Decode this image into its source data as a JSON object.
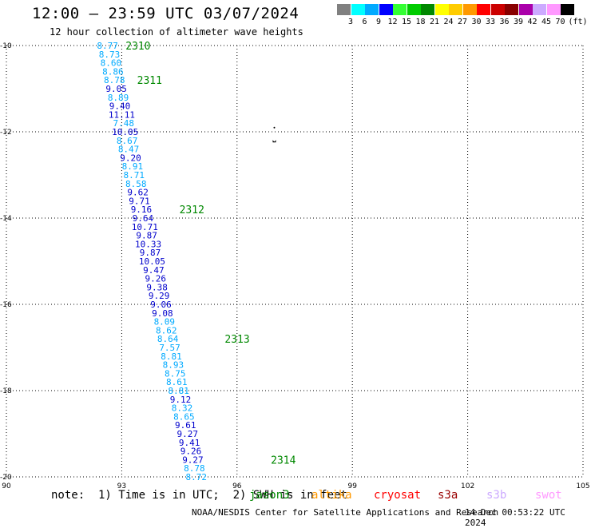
{
  "header": {
    "title": "12:00 – 23:59 UTC 03/07/2024",
    "subtitle": "12 hour collection of altimeter wave heights"
  },
  "legend": {
    "unit": "(ft)",
    "bins": [
      {
        "label": "3",
        "color": "#808080"
      },
      {
        "label": "6",
        "color": "#00ffff"
      },
      {
        "label": "9",
        "color": "#00aaff"
      },
      {
        "label": "12",
        "color": "#0000ff"
      },
      {
        "label": "15",
        "color": "#33ff33"
      },
      {
        "label": "18",
        "color": "#00cc00"
      },
      {
        "label": "21",
        "color": "#008800"
      },
      {
        "label": "24",
        "color": "#ffff00"
      },
      {
        "label": "27",
        "color": "#ffcc00"
      },
      {
        "label": "30",
        "color": "#ff9900"
      },
      {
        "label": "33",
        "color": "#ff0000"
      },
      {
        "label": "36",
        "color": "#cc0000"
      },
      {
        "label": "39",
        "color": "#880000"
      },
      {
        "label": "42",
        "color": "#aa00aa"
      },
      {
        "label": "45",
        "color": "#ccaaff"
      },
      {
        "label": "70",
        "color": "#ff99ff"
      },
      {
        "label": "",
        "color": "#000000"
      }
    ]
  },
  "map": {
    "lon_range": [
      90,
      105
    ],
    "lat_range": [
      -20,
      -10
    ],
    "lon_ticks": [
      "90",
      "93",
      "96",
      "99",
      "102",
      "105"
    ],
    "lat_ticks": [
      "-10",
      "-12",
      "-14",
      "-16",
      "-18",
      "-20"
    ],
    "grid": "dotted",
    "track_colors": {
      "light": "#00aaff",
      "dark": "#0000cc",
      "time": "#008800"
    },
    "wave_heights": [
      {
        "value": "8.77",
        "lon": 92.63,
        "lat": -10.0,
        "shade": "light"
      },
      {
        "value": "8.73",
        "lon": 92.68,
        "lat": -10.2,
        "shade": "light"
      },
      {
        "value": "8.60",
        "lon": 92.72,
        "lat": -10.4,
        "shade": "light"
      },
      {
        "value": "8.86",
        "lon": 92.77,
        "lat": -10.6,
        "shade": "light"
      },
      {
        "value": "8.78",
        "lon": 92.81,
        "lat": -10.8,
        "shade": "light"
      },
      {
        "value": "9.05",
        "lon": 92.86,
        "lat": -11.0,
        "shade": "dark"
      },
      {
        "value": "8.89",
        "lon": 92.91,
        "lat": -11.2,
        "shade": "light"
      },
      {
        "value": "9.40",
        "lon": 92.95,
        "lat": -11.4,
        "shade": "dark"
      },
      {
        "value": "11.11",
        "lon": 93.0,
        "lat": -11.6,
        "shade": "dark"
      },
      {
        "value": "7.48",
        "lon": 93.05,
        "lat": -11.8,
        "shade": "light"
      },
      {
        "value": "10.05",
        "lon": 93.09,
        "lat": -12.0,
        "shade": "dark"
      },
      {
        "value": "8.67",
        "lon": 93.14,
        "lat": -12.2,
        "shade": "light"
      },
      {
        "value": "8.47",
        "lon": 93.18,
        "lat": -12.4,
        "shade": "light"
      },
      {
        "value": "9.20",
        "lon": 93.23,
        "lat": -12.6,
        "shade": "dark"
      },
      {
        "value": "8.91",
        "lon": 93.28,
        "lat": -12.8,
        "shade": "light"
      },
      {
        "value": "8.71",
        "lon": 93.32,
        "lat": -13.0,
        "shade": "light"
      },
      {
        "value": "8.58",
        "lon": 93.37,
        "lat": -13.2,
        "shade": "light"
      },
      {
        "value": "9.62",
        "lon": 93.42,
        "lat": -13.4,
        "shade": "dark"
      },
      {
        "value": "9.71",
        "lon": 93.46,
        "lat": -13.6,
        "shade": "dark"
      },
      {
        "value": "9.16",
        "lon": 93.51,
        "lat": -13.8,
        "shade": "dark"
      },
      {
        "value": "9.64",
        "lon": 93.55,
        "lat": -14.0,
        "shade": "dark"
      },
      {
        "value": "10.71",
        "lon": 93.6,
        "lat": -14.2,
        "shade": "dark"
      },
      {
        "value": "9.87",
        "lon": 93.65,
        "lat": -14.4,
        "shade": "dark"
      },
      {
        "value": "10.33",
        "lon": 93.69,
        "lat": -14.6,
        "shade": "dark"
      },
      {
        "value": "9.87",
        "lon": 93.74,
        "lat": -14.8,
        "shade": "dark"
      },
      {
        "value": "10.05",
        "lon": 93.79,
        "lat": -15.0,
        "shade": "dark"
      },
      {
        "value": "9.47",
        "lon": 93.83,
        "lat": -15.2,
        "shade": "dark"
      },
      {
        "value": "9.26",
        "lon": 93.88,
        "lat": -15.4,
        "shade": "dark"
      },
      {
        "value": "9.38",
        "lon": 93.92,
        "lat": -15.6,
        "shade": "dark"
      },
      {
        "value": "9.29",
        "lon": 93.97,
        "lat": -15.8,
        "shade": "dark"
      },
      {
        "value": "9.06",
        "lon": 94.02,
        "lat": -16.0,
        "shade": "dark"
      },
      {
        "value": "9.08",
        "lon": 94.06,
        "lat": -16.2,
        "shade": "dark"
      },
      {
        "value": "8.09",
        "lon": 94.11,
        "lat": -16.4,
        "shade": "light"
      },
      {
        "value": "8.62",
        "lon": 94.16,
        "lat": -16.6,
        "shade": "light"
      },
      {
        "value": "8.64",
        "lon": 94.2,
        "lat": -16.8,
        "shade": "light"
      },
      {
        "value": "7.57",
        "lon": 94.25,
        "lat": -17.0,
        "shade": "light"
      },
      {
        "value": "8.81",
        "lon": 94.29,
        "lat": -17.2,
        "shade": "light"
      },
      {
        "value": "8.93",
        "lon": 94.34,
        "lat": -17.4,
        "shade": "light"
      },
      {
        "value": "8.75",
        "lon": 94.39,
        "lat": -17.6,
        "shade": "light"
      },
      {
        "value": "8.61",
        "lon": 94.43,
        "lat": -17.8,
        "shade": "light"
      },
      {
        "value": "8.81",
        "lon": 94.48,
        "lat": -18.0,
        "shade": "light"
      },
      {
        "value": "9.12",
        "lon": 94.53,
        "lat": -18.2,
        "shade": "dark"
      },
      {
        "value": "8.32",
        "lon": 94.57,
        "lat": -18.4,
        "shade": "light"
      },
      {
        "value": "8.65",
        "lon": 94.62,
        "lat": -18.6,
        "shade": "light"
      },
      {
        "value": "9.61",
        "lon": 94.66,
        "lat": -18.8,
        "shade": "dark"
      },
      {
        "value": "9.27",
        "lon": 94.71,
        "lat": -19.0,
        "shade": "dark"
      },
      {
        "value": "9.41",
        "lon": 94.76,
        "lat": -19.2,
        "shade": "dark"
      },
      {
        "value": "9.26",
        "lon": 94.8,
        "lat": -19.4,
        "shade": "dark"
      },
      {
        "value": "9.27",
        "lon": 94.85,
        "lat": -19.6,
        "shade": "dark"
      },
      {
        "value": "8.78",
        "lon": 94.89,
        "lat": -19.8,
        "shade": "light"
      },
      {
        "value": "8.72",
        "lon": 94.94,
        "lat": -20.0,
        "shade": "light"
      }
    ],
    "time_labels": [
      {
        "text": "2310",
        "lon": 93.1,
        "lat": -10.0
      },
      {
        "text": "2311",
        "lon": 93.4,
        "lat": -10.8
      },
      {
        "text": "2312",
        "lon": 94.5,
        "lat": -13.8
      },
      {
        "text": "2313",
        "lon": 95.68,
        "lat": -16.8
      },
      {
        "text": "2314",
        "lon": 96.88,
        "lat": -19.6
      }
    ],
    "outlier_mark": {
      "lon": 96.97,
      "lat": -12.2
    }
  },
  "footer": {
    "note": "note:  1) Time is in UTC;  2) SWH is in feet",
    "satellites": [
      {
        "name": "jason3",
        "color": "#008800",
        "offset": 248
      },
      {
        "name": "altika",
        "color": "#ff9900",
        "offset": 326
      },
      {
        "name": "cryosat",
        "color": "#ff0000",
        "offset": 404
      },
      {
        "name": "s3a",
        "color": "#990000",
        "offset": 484
      },
      {
        "name": "s3b",
        "color": "#ccaaff",
        "offset": 545
      },
      {
        "name": "swot",
        "color": "#ff99ff",
        "offset": 606
      }
    ],
    "credit": "NOAA/NESDIS Center for Satellite Applications and Research",
    "timestamp": "14 Dec 00:53:22 UTC 2024"
  }
}
